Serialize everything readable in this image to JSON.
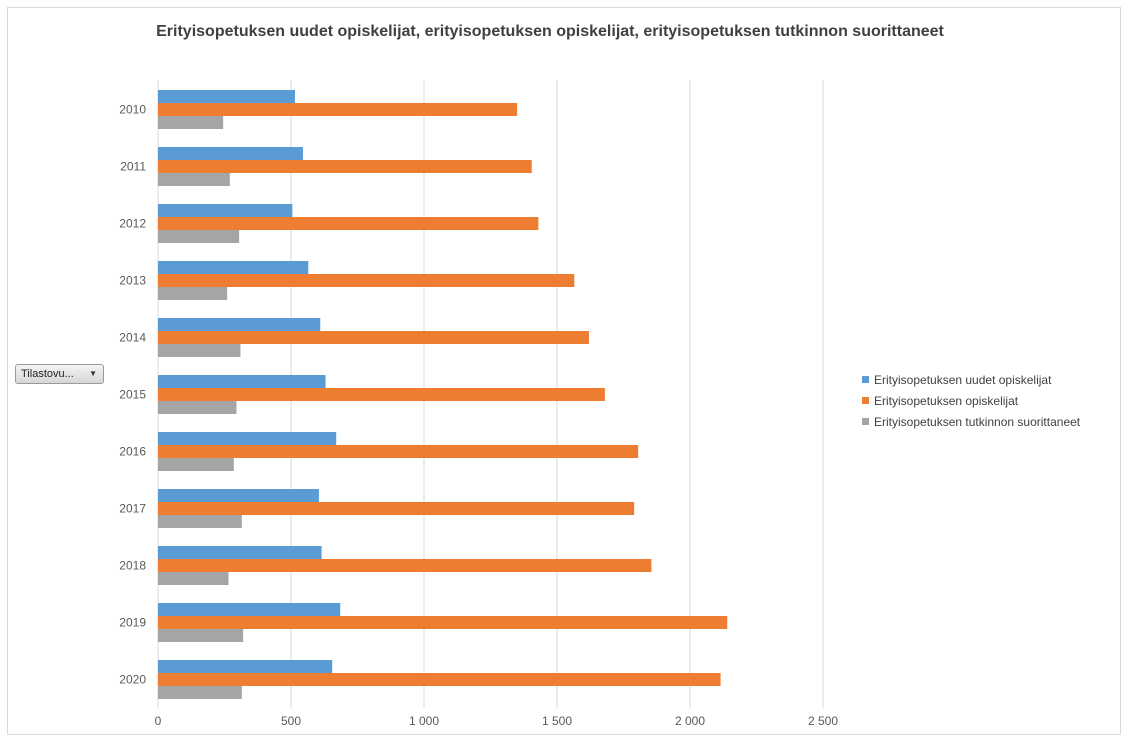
{
  "filter_button": {
    "label": "Tilastovu...",
    "icon": "dropdown-arrow-icon"
  },
  "chart_data": {
    "type": "bar",
    "orientation": "horizontal",
    "title": "Erityisopetuksen uudet opiskelijat, erityisopetuksen opiskelijat, erityisopetuksen tutkinnon suorittaneet",
    "xlabel": "",
    "ylabel": "",
    "xlim": [
      0,
      2500
    ],
    "x_ticks": [
      "0",
      "500",
      "1 000",
      "1 500",
      "2 000",
      "2 500"
    ],
    "x_tick_values": [
      0,
      500,
      1000,
      1500,
      2000,
      2500
    ],
    "grid": "vertical",
    "legend_position": "right",
    "categories": [
      "2010",
      "2011",
      "2012",
      "2013",
      "2014",
      "2015",
      "2016",
      "2017",
      "2018",
      "2019",
      "2020"
    ],
    "series": [
      {
        "name": "Erityisopetuksen uudet opiskelijat",
        "color": "#5b9bd5",
        "values": [
          515,
          545,
          505,
          565,
          610,
          630,
          670,
          605,
          615,
          685,
          655
        ]
      },
      {
        "name": "Erityisopetuksen opiskelijat",
        "color": "#ed7d31",
        "values": [
          1350,
          1405,
          1430,
          1565,
          1620,
          1680,
          1805,
          1790,
          1855,
          2140,
          2115
        ]
      },
      {
        "name": "Erityisopetuksen tutkinnon suorittaneet",
        "color": "#a5a5a5",
        "values": [
          245,
          270,
          305,
          260,
          310,
          295,
          285,
          315,
          265,
          320,
          315
        ]
      }
    ]
  }
}
